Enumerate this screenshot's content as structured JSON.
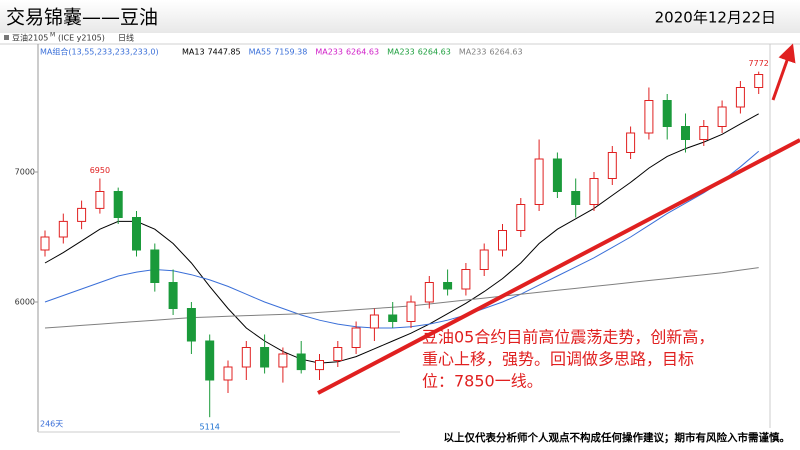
{
  "header": {
    "title": "交易锦囊——豆油",
    "date": "2020年12月22日"
  },
  "toolbar": {
    "symbol": "豆油2105",
    "suffix": "M",
    "code": "(ICE y2105)",
    "period": "日线"
  },
  "chart_data": {
    "type": "candlestick",
    "indicator": "MA组合(13,55,233,233,233,0)",
    "legend": [
      {
        "name": "MA13",
        "value": 7447.85,
        "color": "#000000"
      },
      {
        "name": "MA55",
        "value": 7159.38,
        "color": "#3a6fd8"
      },
      {
        "name": "MA233",
        "value": 6264.63,
        "color": "#d020c8"
      },
      {
        "name": "MA233",
        "value": 6264.63,
        "color": "#20a040"
      },
      {
        "name": "MA233",
        "value": 6264.63,
        "color": "#808080"
      }
    ],
    "up_color": "#e02020",
    "down_color": "#1a9a3a",
    "ylim": [
      5000,
      8000
    ],
    "yticks": [
      6000,
      7000
    ],
    "period_count": "246天",
    "ohlc": {
      "open": [
        6400,
        6500,
        6620,
        6720,
        6850,
        6650,
        6400,
        6150,
        5950,
        5700,
        5400,
        5500,
        5650,
        5500,
        5600,
        5480,
        5550,
        5650,
        5800,
        5900,
        5850,
        6000,
        6150,
        6100,
        6250,
        6400,
        6550,
        6750,
        7100,
        6850,
        6750,
        6950,
        7150,
        7300,
        7550,
        7350,
        7250,
        7350,
        7500,
        7650
      ],
      "high": [
        6550,
        6680,
        6780,
        6950,
        6880,
        6700,
        6450,
        6250,
        6000,
        5750,
        5550,
        5700,
        5750,
        5650,
        5700,
        5600,
        5700,
        5850,
        5950,
        6000,
        6050,
        6200,
        6250,
        6300,
        6450,
        6600,
        6800,
        7250,
        7150,
        6950,
        7000,
        7200,
        7350,
        7650,
        7600,
        7450,
        7400,
        7550,
        7700,
        7772
      ],
      "low": [
        6350,
        6450,
        6560,
        6680,
        6600,
        6350,
        6080,
        5900,
        5600,
        5114,
        5300,
        5400,
        5450,
        5380,
        5450,
        5400,
        5500,
        5600,
        5700,
        5800,
        5800,
        5950,
        6050,
        6050,
        6200,
        6350,
        6500,
        6700,
        6800,
        6650,
        6700,
        6900,
        7100,
        7250,
        7250,
        7150,
        7200,
        7300,
        7450,
        7600
      ],
      "close": [
        6500,
        6620,
        6720,
        6850,
        6650,
        6400,
        6150,
        5950,
        5700,
        5400,
        5500,
        5650,
        5500,
        5600,
        5480,
        5550,
        5650,
        5800,
        5900,
        5850,
        6000,
        6150,
        6100,
        6250,
        6400,
        6550,
        6750,
        7100,
        6850,
        6750,
        6950,
        7150,
        7300,
        7550,
        7350,
        7250,
        7350,
        7500,
        7650,
        7750
      ]
    },
    "series": [
      {
        "name": "MA13",
        "color": "#000000",
        "values": [
          6300,
          6380,
          6470,
          6560,
          6620,
          6620,
          6560,
          6450,
          6300,
          6120,
          5950,
          5800,
          5700,
          5620,
          5560,
          5530,
          5540,
          5580,
          5640,
          5700,
          5760,
          5830,
          5910,
          5990,
          6080,
          6180,
          6300,
          6450,
          6560,
          6640,
          6720,
          6820,
          6920,
          7030,
          7120,
          7180,
          7230,
          7290,
          7370,
          7447.85
        ]
      },
      {
        "name": "MA55",
        "color": "#3a6fd8",
        "values": [
          6000,
          6050,
          6100,
          6150,
          6200,
          6230,
          6250,
          6240,
          6210,
          6170,
          6120,
          6060,
          6000,
          5950,
          5900,
          5860,
          5830,
          5810,
          5800,
          5800,
          5810,
          5830,
          5860,
          5900,
          5950,
          6000,
          6060,
          6130,
          6200,
          6270,
          6340,
          6420,
          6500,
          6590,
          6680,
          6760,
          6840,
          6930,
          7040,
          7159.38
        ]
      },
      {
        "name": "MA233",
        "color": "#808080",
        "values": [
          5800,
          5810,
          5820,
          5830,
          5840,
          5850,
          5860,
          5870,
          5880,
          5885,
          5890,
          5895,
          5900,
          5905,
          5910,
          5920,
          5930,
          5940,
          5950,
          5960,
          5970,
          5985,
          6000,
          6015,
          6030,
          6045,
          6060,
          6075,
          6090,
          6105,
          6120,
          6135,
          6150,
          6165,
          6180,
          6195,
          6210,
          6225,
          6245,
          6264.63
        ]
      }
    ]
  },
  "annotation": [
    "豆油05合约目前高位震荡走势，创新高，",
    "重心上移，强势。回调做多思路，目标",
    "位：7850一线。"
  ],
  "disclaimer": "以上仅代表分析师个人观点不构成任何操作建议；期市有风险入市需谨慎。"
}
